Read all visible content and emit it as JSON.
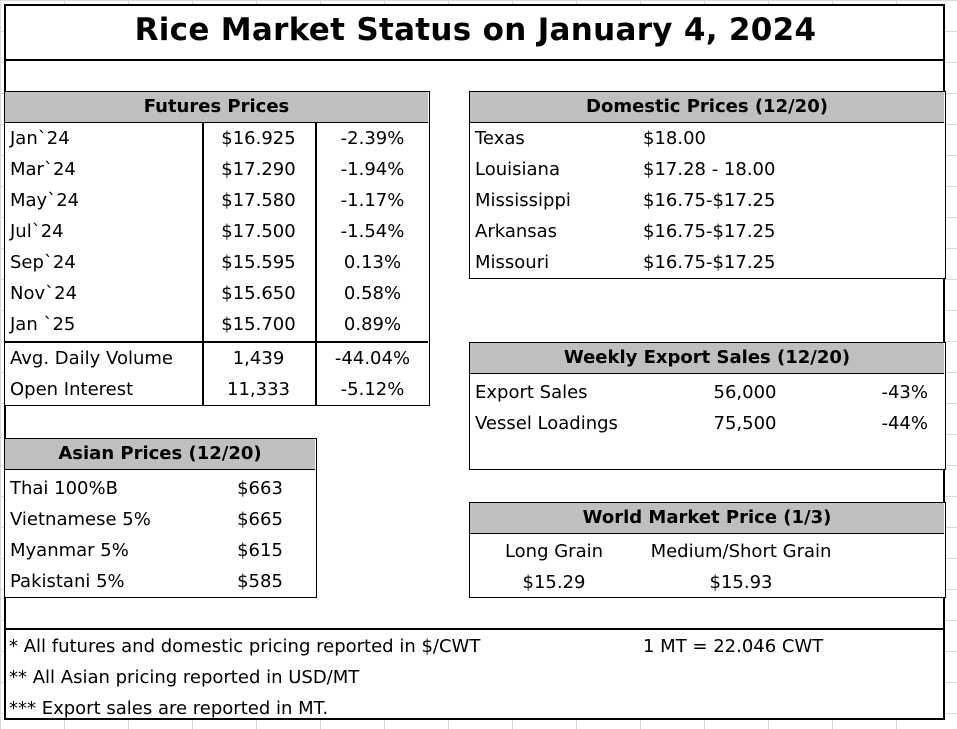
{
  "title": "Rice Market Status on January 4, 2024",
  "futures": {
    "header": "Futures Prices",
    "rows": [
      {
        "month": "Jan`24",
        "price": "$16.925",
        "change": "-2.39%"
      },
      {
        "month": "Mar`24",
        "price": "$17.290",
        "change": "-1.94%"
      },
      {
        "month": "May`24",
        "price": "$17.580",
        "change": "-1.17%"
      },
      {
        "month": "Jul`24",
        "price": "$17.500",
        "change": "-1.54%"
      },
      {
        "month": "Sep`24",
        "price": "$15.595",
        "change": "0.13%"
      },
      {
        "month": "Nov`24",
        "price": "$15.650",
        "change": "0.58%"
      },
      {
        "month": "Jan `25",
        "price": "$15.700",
        "change": "0.89%"
      }
    ],
    "volume": {
      "label": "Avg. Daily Volume",
      "value": "1,439",
      "change": "-44.04%"
    },
    "open_interest": {
      "label": "Open Interest",
      "value": "11,333",
      "change": "-5.12%"
    }
  },
  "domestic": {
    "header": "Domestic Prices (12/20)",
    "rows": [
      {
        "state": "Texas",
        "price": "$18.00"
      },
      {
        "state": "Louisiana",
        "price": "$17.28 - 18.00"
      },
      {
        "state": "Mississippi",
        "price": "$16.75-$17.25"
      },
      {
        "state": "Arkansas",
        "price": "$16.75-$17.25"
      },
      {
        "state": "Missouri",
        "price": "$16.75-$17.25"
      }
    ]
  },
  "exports": {
    "header": "Weekly Export Sales (12/20)",
    "rows": [
      {
        "label": "Export Sales",
        "value": "56,000",
        "change": "-43%"
      },
      {
        "label": "Vessel Loadings",
        "value": "75,500",
        "change": "-44%"
      }
    ]
  },
  "asian": {
    "header": "Asian Prices (12/20)",
    "rows": [
      {
        "label": "Thai 100%B",
        "price": "$663"
      },
      {
        "label": "Vietnamese 5%",
        "price": "$665"
      },
      {
        "label": "Myanmar 5%",
        "price": "$615"
      },
      {
        "label": "Pakistani 5%",
        "price": "$585"
      }
    ]
  },
  "world": {
    "header": "World Market Price (1/3)",
    "long_label": "Long Grain",
    "medium_label": "Medium/Short Grain",
    "long_price": "$15.29",
    "medium_price": "$15.93"
  },
  "notes": {
    "line1": "* All futures and domestic pricing reported in $/CWT",
    "conversion": "1 MT = 22.046 CWT",
    "line2": "** All Asian pricing reported in USD/MT",
    "line3": "*** Export sales are reported in MT."
  }
}
